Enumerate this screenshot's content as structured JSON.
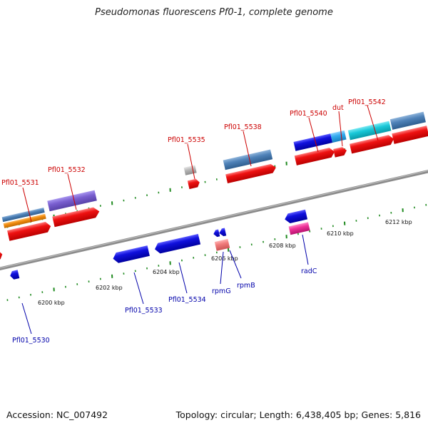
{
  "title": "Pseudomonas fluorescens Pf0-1, complete genome",
  "footer": {
    "accession": "Accession: NC_007492",
    "summary": "Topology: circular; Length: 6,438,405 bp; Genes: 5,816"
  },
  "colors": {
    "background": "#ffffff",
    "backbone": "#8c8c8c",
    "ticks": "#1f8a1f",
    "forward_label": "#cc0000",
    "reverse_label": "#0000aa",
    "cds_forward": "#ee1111",
    "cds_reverse": "#1010dd",
    "steelblue": "#4f82b8",
    "purple": "#7a5fd0",
    "orange": "#f08c10",
    "cyan": "#19c8d8",
    "lightblue": "#33aaee",
    "gray": "#b8b8b8",
    "pink": "#ee3399",
    "salmon": "#f07b7b"
  },
  "scale_labels": [
    "6200 kbp",
    "6202 kbp",
    "6204 kbp",
    "6206 kbp",
    "6208 kbp",
    "6210 kbp",
    "6212 kbp"
  ],
  "forward_labels": [
    "Pfl01_5531",
    "Pfl01_5532",
    "Pfl01_5535",
    "Pfl01_5538",
    "Pfl01_5540",
    "dut",
    "Pfl01_5542"
  ],
  "reverse_labels": [
    "Pfl01_5530",
    "Pfl01_5533",
    "Pfl01_5534",
    "rpmG",
    "rpmB",
    "radC"
  ]
}
